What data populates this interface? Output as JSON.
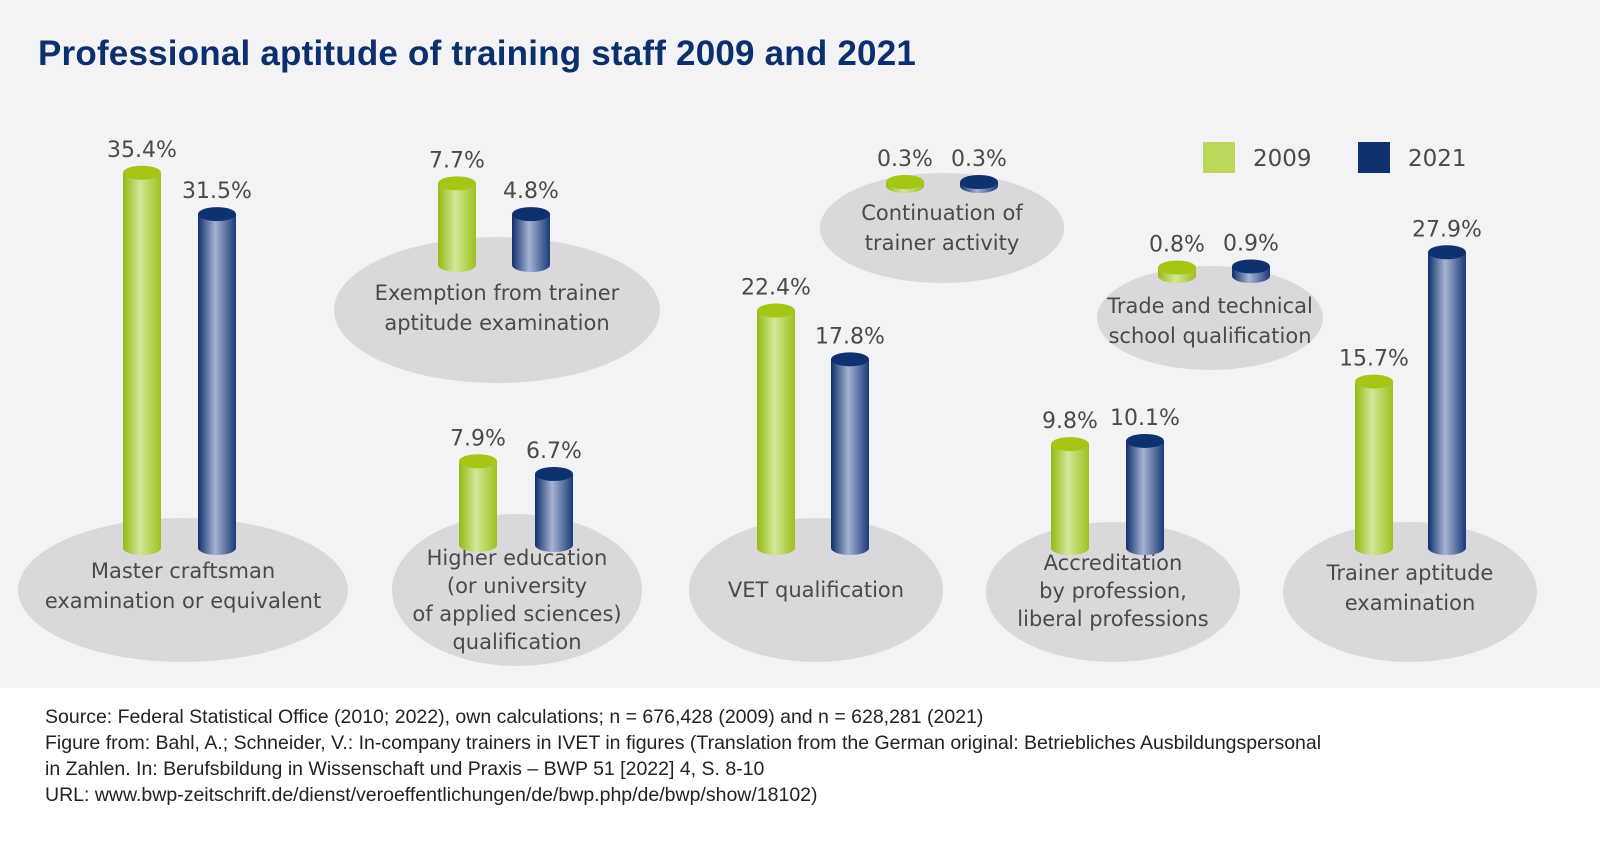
{
  "title": "Professional aptitude of training staff 2009 and 2021",
  "chart_data": {
    "type": "bar",
    "title": "Professional aptitude of training staff 2009 and 2021",
    "style": "3D cylinders on grey ellipses",
    "legend_position": "top-right",
    "unit": "%",
    "categories": [
      [
        "Master craftsman",
        "examination or equivalent"
      ],
      [
        "Exemption from trainer",
        "aptitude examination"
      ],
      [
        "Higher education",
        "(or university",
        "of applied sciences)",
        "qualification"
      ],
      [
        "VET qualification"
      ],
      [
        "Continuation of",
        "trainer activity"
      ],
      [
        "Trade and technical",
        "school qualification"
      ],
      [
        "Accreditation",
        "by profession,",
        "liberal professions"
      ],
      [
        "Trainer aptitude",
        "examination"
      ]
    ],
    "series": [
      {
        "name": "2009",
        "color": "#a3c617",
        "values": [
          35.4,
          7.7,
          7.9,
          22.4,
          0.3,
          0.8,
          9.8,
          15.7
        ],
        "labels": [
          "35.4%",
          "7.7%",
          "7.9%",
          "22.4%",
          "0.3%",
          "0.8%",
          "9.8%",
          "15.7%"
        ]
      },
      {
        "name": "2021",
        "color": "#0e3270",
        "values": [
          31.5,
          4.8,
          6.7,
          17.8,
          0.3,
          0.9,
          10.1,
          27.9
        ],
        "labels": [
          "31.5%",
          "4.8%",
          "6.7%",
          "17.8%",
          "0.3%",
          "0.9%",
          "10.1%",
          "27.9%"
        ]
      }
    ],
    "ellipse_color": "#d9d9db"
  },
  "footer": [
    "Source: Federal Statistical Office (2010; 2022), own calculations; n = 676,428 (2009) and n = 628,281 (2021)",
    "Figure from: Bahl, A.; Schneider, V.: In-company trainers in IVET in figures (Translation from the German original: Betriebliches Ausbildungspersonal",
    "in Zahlen. In: Berufsbildung in Wissenschaft und Praxis – BWP 51 [2022] 4, S. 8-10",
    "URL: www.bwp-zeitschrift.de/dienst/veroeffentlichungen/de/bwp.php/de/bwp/show/18102)"
  ]
}
